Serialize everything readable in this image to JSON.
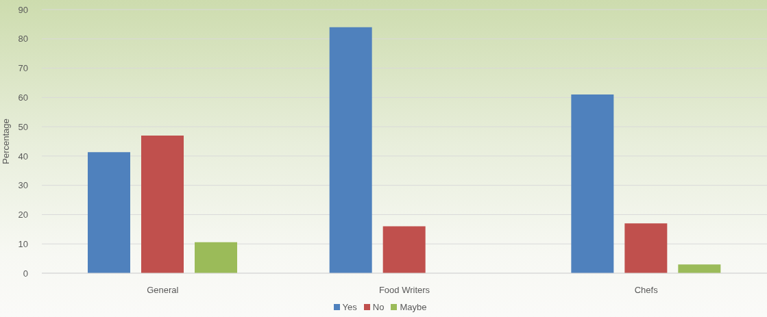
{
  "chart_data": {
    "type": "bar",
    "ylabel": "Percentage",
    "categories": [
      "General",
      "Food Writers",
      "Chefs"
    ],
    "series": [
      {
        "name": "Yes",
        "color": "#4f81bd",
        "values": [
          41.3,
          84,
          61
        ]
      },
      {
        "name": "No",
        "color": "#c0504d",
        "values": [
          47,
          16,
          17
        ]
      },
      {
        "name": "Maybe",
        "color": "#9bbb59",
        "values": [
          10.6,
          0,
          3
        ]
      }
    ],
    "ylim": [
      0,
      90
    ],
    "yticks": [
      0,
      10,
      20,
      30,
      40,
      50,
      60,
      70,
      80,
      90
    ],
    "grid": "y",
    "legend": "bottom"
  }
}
